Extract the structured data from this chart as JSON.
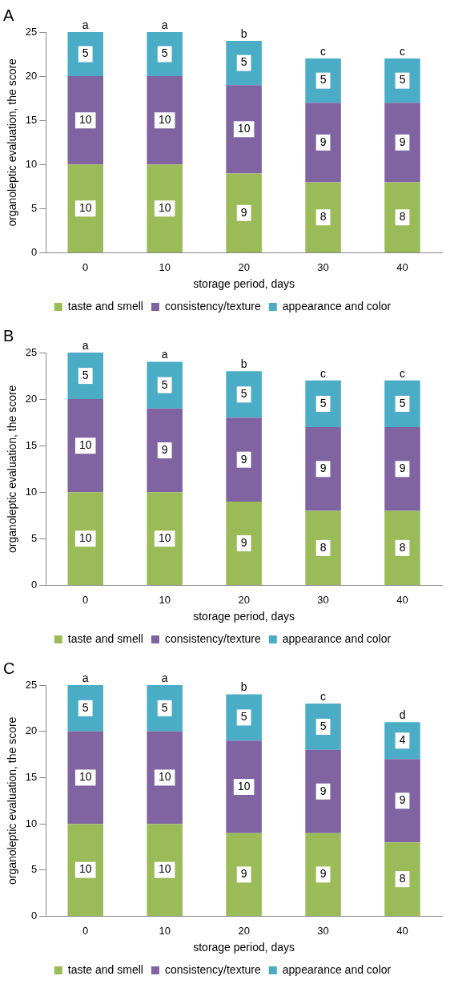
{
  "chart_data": [
    {
      "type": "bar",
      "title": "A",
      "xlabel": "storage period, days",
      "ylabel": "organoleptic evaluation, the score",
      "categories": [
        "0",
        "10",
        "20",
        "30",
        "40"
      ],
      "stacked": true,
      "data_labels": true,
      "legend": "bottom",
      "grid": false,
      "ylim": [
        0,
        25
      ],
      "yticks": [
        0,
        5,
        10,
        15,
        20,
        25
      ],
      "series": [
        {
          "name": "taste and smell",
          "color": "#9bbb59",
          "values": [
            10,
            10,
            9,
            8,
            8
          ]
        },
        {
          "name": "consistency/texture",
          "color": "#8064a2",
          "values": [
            10,
            10,
            10,
            9,
            9
          ]
        },
        {
          "name": "appearance and color",
          "color": "#4bacc6",
          "values": [
            5,
            5,
            5,
            5,
            5
          ]
        }
      ],
      "annotations": [
        {
          "text": "a",
          "x": "0",
          "y": 25
        },
        {
          "text": "a",
          "x": "10",
          "y": 25
        },
        {
          "text": "b",
          "x": "20",
          "y": 24
        },
        {
          "text": "c",
          "x": "30",
          "y": 22
        },
        {
          "text": "c",
          "x": "40",
          "y": 22
        }
      ]
    },
    {
      "type": "bar",
      "title": "B",
      "xlabel": "storage period, days",
      "ylabel": "organoleptic evaluation, the score",
      "categories": [
        "0",
        "10",
        "20",
        "30",
        "40"
      ],
      "stacked": true,
      "data_labels": true,
      "legend": "bottom",
      "grid": false,
      "ylim": [
        0,
        25
      ],
      "yticks": [
        0,
        5,
        10,
        15,
        20,
        25
      ],
      "series": [
        {
          "name": "taste and smell",
          "color": "#9bbb59",
          "values": [
            10,
            10,
            9,
            8,
            8
          ]
        },
        {
          "name": "consistency/texture",
          "color": "#8064a2",
          "values": [
            10,
            9,
            9,
            9,
            9
          ]
        },
        {
          "name": "appearance and color",
          "color": "#4bacc6",
          "values": [
            5,
            5,
            5,
            5,
            5
          ]
        }
      ],
      "annotations": [
        {
          "text": "a",
          "x": "0",
          "y": 25
        },
        {
          "text": "a",
          "x": "10",
          "y": 24
        },
        {
          "text": "b",
          "x": "20",
          "y": 23
        },
        {
          "text": "c",
          "x": "30",
          "y": 22
        },
        {
          "text": "c",
          "x": "40",
          "y": 22
        }
      ]
    },
    {
      "type": "bar",
      "title": "C",
      "xlabel": "storage period, days",
      "ylabel": "organoleptic evaluation, the score",
      "categories": [
        "0",
        "10",
        "20",
        "30",
        "40"
      ],
      "stacked": true,
      "data_labels": true,
      "legend": "bottom",
      "grid": false,
      "ylim": [
        0,
        25
      ],
      "yticks": [
        0,
        5,
        10,
        15,
        20,
        25
      ],
      "series": [
        {
          "name": "taste and smell",
          "color": "#9bbb59",
          "values": [
            10,
            10,
            9,
            9,
            8
          ]
        },
        {
          "name": "consistency/texture",
          "color": "#8064a2",
          "values": [
            10,
            10,
            10,
            9,
            9
          ]
        },
        {
          "name": "appearance and color",
          "color": "#4bacc6",
          "values": [
            5,
            5,
            5,
            5,
            4
          ]
        }
      ],
      "annotations": [
        {
          "text": "a",
          "x": "0",
          "y": 25
        },
        {
          "text": "a",
          "x": "10",
          "y": 25
        },
        {
          "text": "b",
          "x": "20",
          "y": 24
        },
        {
          "text": "c",
          "x": "30",
          "y": 23
        },
        {
          "text": "d",
          "x": "40",
          "y": 21
        }
      ]
    }
  ]
}
